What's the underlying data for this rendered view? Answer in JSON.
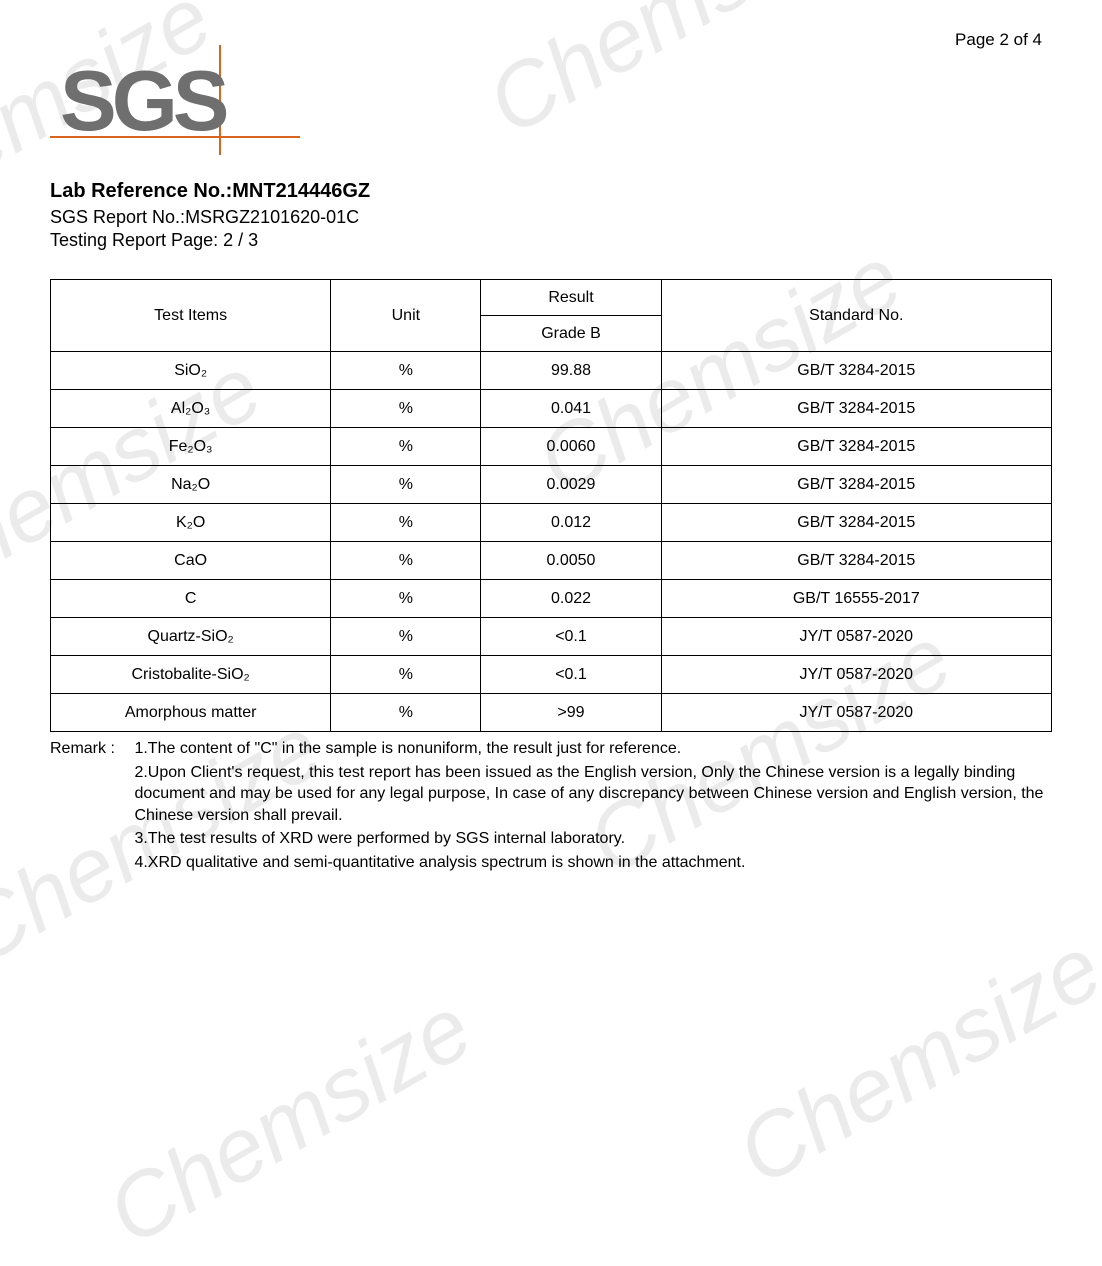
{
  "watermark": "Chemsize",
  "page_label": "Page 2 of 4",
  "logo": {
    "text": "SGS",
    "letter_color": "#6f6f6f",
    "line_color": "#d9641e"
  },
  "refs": {
    "lab_ref_label": "Lab Reference No.:",
    "lab_ref_value": "MNT214446GZ",
    "sgs_report_label": "SGS Report No.:",
    "sgs_report_value": "MSRGZ2101620-01C",
    "testing_page_label": "Testing Report Page:",
    "testing_page_value": "2 / 3"
  },
  "table": {
    "headers": {
      "test_items": "Test Items",
      "unit": "Unit",
      "result": "Result",
      "grade": "Grade B",
      "standard": "Standard No."
    },
    "rows": [
      {
        "item": "SiO₂",
        "unit": "%",
        "result": "99.88",
        "standard": "GB/T 3284-2015"
      },
      {
        "item": "Al₂O₃",
        "unit": "%",
        "result": "0.041",
        "standard": "GB/T 3284-2015"
      },
      {
        "item": "Fe₂O₃",
        "unit": "%",
        "result": "0.0060",
        "standard": "GB/T 3284-2015"
      },
      {
        "item": "Na₂O",
        "unit": "%",
        "result": "0.0029",
        "standard": "GB/T 3284-2015"
      },
      {
        "item": "K₂O",
        "unit": "%",
        "result": "0.012",
        "standard": "GB/T 3284-2015"
      },
      {
        "item": "CaO",
        "unit": "%",
        "result": "0.0050",
        "standard": "GB/T 3284-2015"
      },
      {
        "item": "C",
        "unit": "%",
        "result": "0.022",
        "standard": "GB/T 16555-2017"
      },
      {
        "item": "Quartz-SiO₂",
        "unit": "%",
        "result": "<0.1",
        "standard": "JY/T 0587-2020"
      },
      {
        "item": "Cristobalite-SiO₂",
        "unit": "%",
        "result": "<0.1",
        "standard": "JY/T 0587-2020"
      },
      {
        "item": "Amorphous matter",
        "unit": "%",
        "result": ">99",
        "standard": "JY/T 0587-2020"
      }
    ]
  },
  "remark": {
    "label": "Remark :",
    "lines": [
      "1.The content of \"C\" in the sample is nonuniform, the result just for reference.",
      "2.Upon Client's request, this test report has been issued as the English version, Only the Chinese version is a legally binding document and may be used for any legal purpose, In case of any discrepancy between Chinese version and English version, the Chinese version shall prevail.",
      "3.The test results of XRD were performed by SGS internal laboratory.",
      "4.XRD qualitative and semi-quantitative analysis spectrum is shown in the attachment."
    ]
  },
  "colors": {
    "text": "#000000",
    "border": "#000000",
    "background": "#ffffff",
    "watermark": "rgba(0,0,0,0.08)"
  }
}
